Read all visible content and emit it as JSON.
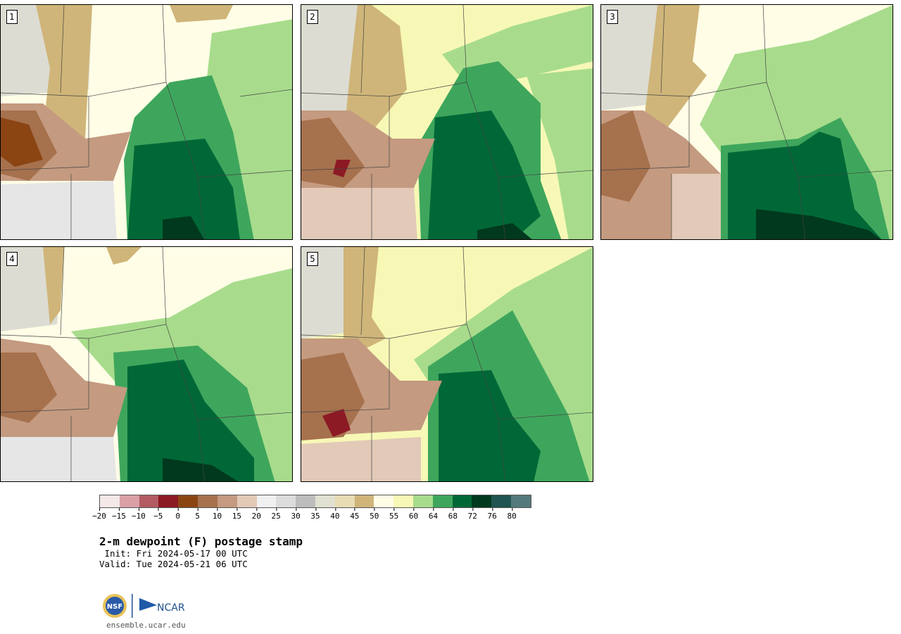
{
  "panels": [
    {
      "label": "1"
    },
    {
      "label": "2"
    },
    {
      "label": "3"
    },
    {
      "label": "4"
    },
    {
      "label": "5"
    }
  ],
  "colorbar": {
    "colors": [
      "#f4e8e8",
      "#d9a0a6",
      "#b25b63",
      "#8c1a24",
      "#8b4513",
      "#a6714d",
      "#c49a80",
      "#e2c9b8",
      "#f0f0f0",
      "#dcdcdc",
      "#bdbdbd",
      "#e1e1d2",
      "#e8dcb4",
      "#cfb579",
      "#fffde6",
      "#f7f8b6",
      "#a8dc8c",
      "#3ea65c",
      "#006837",
      "#00391e",
      "#1f5450",
      "#557a7c"
    ],
    "ticks": [
      "−20",
      "−15",
      "−10",
      "−5",
      "0",
      "5",
      "10",
      "15",
      "20",
      "25",
      "30",
      "35",
      "40",
      "45",
      "50",
      "55",
      "60",
      "64",
      "68",
      "72",
      "76",
      "80"
    ]
  },
  "title": "2-m dewpoint (F) postage stamp",
  "init": " Init: Fri 2024-05-17 00 UTC",
  "valid": "Valid: Tue 2024-05-21 06 UTC",
  "footer": {
    "nsf_logo": "NSF",
    "ncar_logo": "NCAR",
    "site": "ensemble.ucar.edu"
  },
  "icons": [
    "nsf-logo-icon",
    "ncar-logo-icon"
  ]
}
